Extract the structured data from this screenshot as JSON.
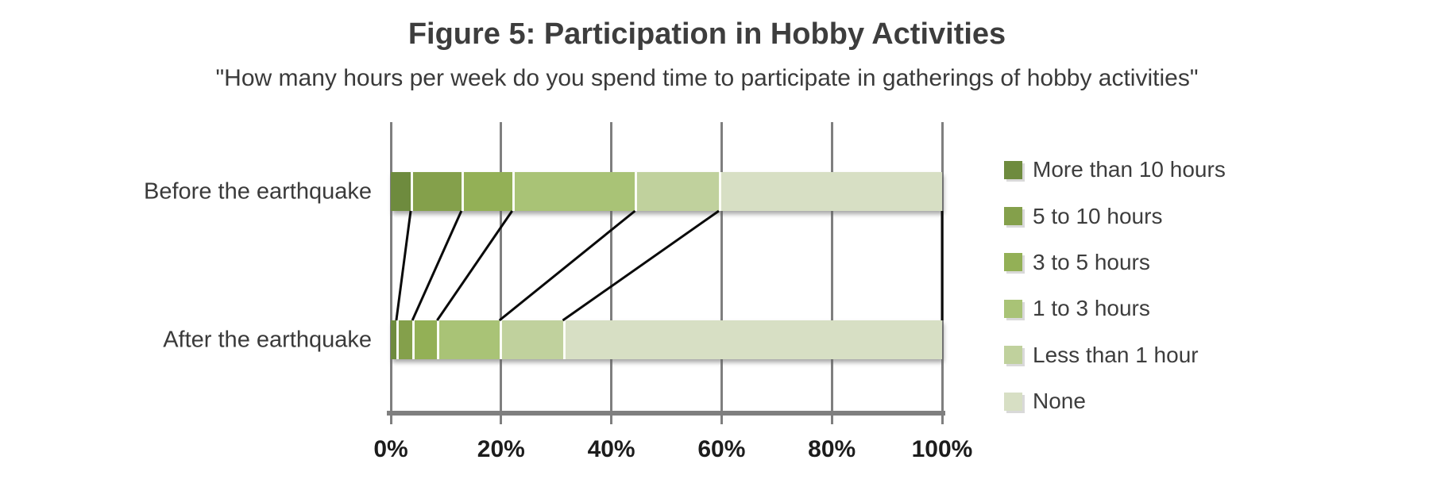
{
  "chart_data": {
    "type": "bar",
    "orientation": "horizontal",
    "stacked": true,
    "unit": "percent",
    "title": "Figure 5: Participation in Hobby Activities",
    "subtitle": "\"How many hours per week do you spend time to participate in gatherings of hobby activities\"",
    "categories": [
      "Before the earthquake",
      "After the earthquake"
    ],
    "series": [
      {
        "name": "More than 10 hours",
        "color": "#6e8b3e",
        "values": [
          3.6,
          1.0
        ]
      },
      {
        "name": "5 to 10 hours",
        "color": "#84a04b",
        "values": [
          9.2,
          2.9
        ]
      },
      {
        "name": "3 to 5 hours",
        "color": "#93b056",
        "values": [
          9.2,
          4.5
        ]
      },
      {
        "name": "1 to 3 hours",
        "color": "#a9c376",
        "values": [
          22.3,
          11.3
        ]
      },
      {
        "name": "Less than 1 hour",
        "color": "#c0d19d",
        "values": [
          15.2,
          11.5
        ]
      },
      {
        "name": "None",
        "color": "#d7dfc4",
        "values": [
          40.5,
          68.8
        ]
      }
    ],
    "x_ticks": [
      "0%",
      "20%",
      "40%",
      "60%",
      "80%",
      "100%"
    ],
    "xlim": [
      0,
      100
    ],
    "grid": "vertical",
    "gridline_color": "#7f7f7f",
    "connector_color": "#0a0a0a",
    "legend_position": "right",
    "legend_order_top_to_bottom": [
      "More than 10 hours",
      "5 to 10 hours",
      "3 to 5 hours",
      "1 to 3 hours",
      "Less than 1 hour",
      "None"
    ],
    "category_connectors": true
  }
}
